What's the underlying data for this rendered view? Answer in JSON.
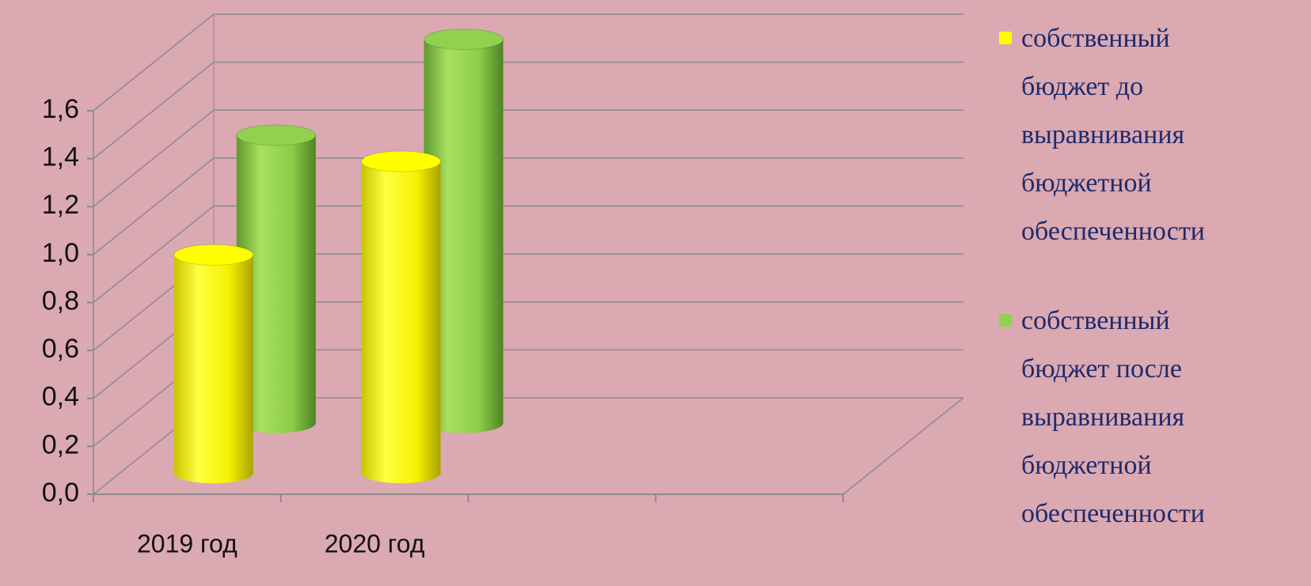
{
  "chart_data": {
    "type": "bar3d",
    "categories": [
      "2019 год",
      "2020 год",
      null,
      null
    ],
    "series": [
      {
        "name": "собственный бюджет до выравнивания бюджетной обеспеченности",
        "color": "#ffff00",
        "values": [
          0.91,
          1.3,
          null,
          null
        ]
      },
      {
        "name": "собственный бюджет после выравнивания бюджетной обеспеченности",
        "color": "#92d050",
        "values": [
          1.2,
          1.6,
          null,
          null
        ]
      }
    ],
    "ylim": [
      0,
      1.6
    ],
    "yticks": [
      {
        "value": 0,
        "label": "0,0"
      },
      {
        "value": 0.2,
        "label": "0,2"
      },
      {
        "value": 0.4,
        "label": "0,4"
      },
      {
        "value": 0.6,
        "label": "0,6"
      },
      {
        "value": 0.8,
        "label": "0,8"
      },
      {
        "value": 1.0,
        "label": "1,0"
      },
      {
        "value": 1.2,
        "label": "1,2"
      },
      {
        "value": 1.4,
        "label": "1,4"
      },
      {
        "value": 1.6,
        "label": "1,6"
      }
    ],
    "grid": true,
    "legend": "right"
  }
}
